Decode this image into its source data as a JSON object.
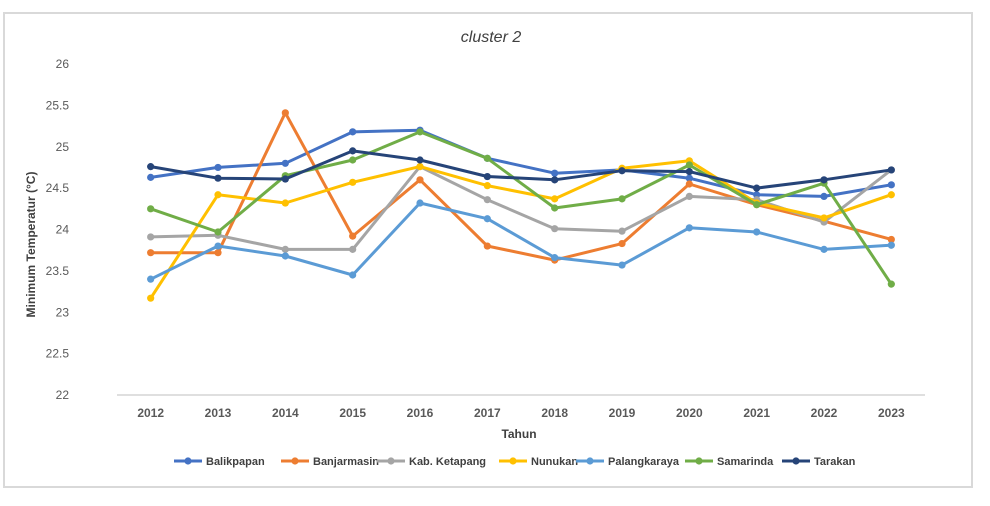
{
  "chart_data": {
    "type": "line",
    "title": "cluster 2",
    "xlabel": "Tahun",
    "ylabel": "Minimum Temperatur (°C)",
    "ylim": [
      22,
      26
    ],
    "yticks": [
      22,
      22.5,
      23,
      23.5,
      24,
      24.5,
      25,
      25.5,
      26
    ],
    "ytick_labels": [
      "22",
      "22.5",
      "23",
      "23.5",
      "24",
      "24.5",
      "25",
      "25.5",
      "26"
    ],
    "categories": [
      "2012",
      "2013",
      "2014",
      "2015",
      "2016",
      "2017",
      "2018",
      "2019",
      "2020",
      "2021",
      "2022",
      "2023"
    ],
    "grid": false,
    "legend_position": "bottom",
    "series": [
      {
        "name": "Balikpapan",
        "color": "#4472c4",
        "values": [
          24.63,
          24.75,
          24.8,
          25.18,
          25.2,
          24.86,
          24.68,
          24.72,
          24.62,
          24.42,
          24.4,
          24.54
        ]
      },
      {
        "name": "Banjarmasin",
        "color": "#ed7d31",
        "values": [
          23.72,
          23.72,
          25.41,
          23.92,
          24.6,
          23.8,
          23.63,
          23.83,
          24.55,
          24.3,
          24.1,
          23.88
        ]
      },
      {
        "name": "Kab. Ketapang",
        "color": "#a5a5a5",
        "values": [
          23.91,
          23.93,
          23.76,
          23.76,
          24.76,
          24.36,
          24.01,
          23.98,
          24.4,
          24.36,
          24.09,
          24.72
        ]
      },
      {
        "name": "Nunukan",
        "color": "#ffc000",
        "values": [
          23.17,
          24.42,
          24.32,
          24.57,
          24.76,
          24.53,
          24.37,
          24.74,
          24.83,
          24.32,
          24.14,
          24.42
        ]
      },
      {
        "name": "Palangkaraya",
        "color": "#5b9bd5",
        "values": [
          23.4,
          23.8,
          23.68,
          23.45,
          24.32,
          24.13,
          23.66,
          23.57,
          24.02,
          23.97,
          23.76,
          23.81
        ]
      },
      {
        "name": "Samarinda",
        "color": "#70ad47",
        "values": [
          24.25,
          23.97,
          24.65,
          24.84,
          25.18,
          24.86,
          24.26,
          24.37,
          24.78,
          24.3,
          24.56,
          23.34
        ]
      },
      {
        "name": "Tarakan",
        "color": "#264478",
        "values": [
          24.76,
          24.62,
          24.61,
          24.95,
          24.84,
          24.64,
          24.6,
          24.71,
          24.7,
          24.5,
          24.6,
          24.72
        ]
      }
    ]
  }
}
